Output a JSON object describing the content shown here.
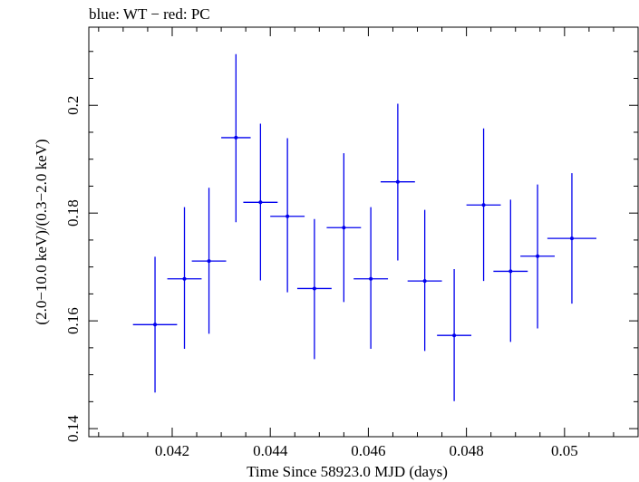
{
  "chart_data": {
    "type": "scatter",
    "title": "blue: WT − red: PC",
    "xlabel": "Time Since 58923.0 MJD (days)",
    "ylabel": "(2.0−10.0 keV)/(0.3−2.0 keV)",
    "xlim": [
      0.0403,
      0.0515
    ],
    "ylim": [
      0.1385,
      0.2145
    ],
    "x_ticks": [
      0.042,
      0.044,
      0.046,
      0.048,
      0.05
    ],
    "x_tick_labels": [
      "0.042",
      "0.044",
      "0.046",
      "0.048",
      "0.05"
    ],
    "y_ticks": [
      0.14,
      0.16,
      0.18,
      0.2
    ],
    "y_tick_labels": [
      "0.14",
      "0.16",
      "0.18",
      "0.2"
    ],
    "grid": false,
    "series": [
      {
        "color": "#0000ee",
        "points": [
          {
            "x": 0.04165,
            "y": 0.1593,
            "xerr": 0.00045,
            "ylo": 0.1467,
            "yhi": 0.1719
          },
          {
            "x": 0.04225,
            "y": 0.1678,
            "xerr": 0.00035,
            "ylo": 0.1548,
            "yhi": 0.1811
          },
          {
            "x": 0.04275,
            "y": 0.1711,
            "xerr": 0.00035,
            "ylo": 0.1576,
            "yhi": 0.1847
          },
          {
            "x": 0.0433,
            "y": 0.194,
            "xerr": 0.0003,
            "ylo": 0.1783,
            "yhi": 0.2095
          },
          {
            "x": 0.0438,
            "y": 0.182,
            "xerr": 0.00035,
            "ylo": 0.1675,
            "yhi": 0.1966
          },
          {
            "x": 0.04435,
            "y": 0.1794,
            "xerr": 0.00035,
            "ylo": 0.1653,
            "yhi": 0.1939
          },
          {
            "x": 0.0449,
            "y": 0.166,
            "xerr": 0.00035,
            "ylo": 0.1529,
            "yhi": 0.1789
          },
          {
            "x": 0.0455,
            "y": 0.1773,
            "xerr": 0.00035,
            "ylo": 0.1635,
            "yhi": 0.1911
          },
          {
            "x": 0.04605,
            "y": 0.1678,
            "xerr": 0.00035,
            "ylo": 0.1548,
            "yhi": 0.1811
          },
          {
            "x": 0.0466,
            "y": 0.1858,
            "xerr": 0.00035,
            "ylo": 0.1712,
            "yhi": 0.2003
          },
          {
            "x": 0.04715,
            "y": 0.1674,
            "xerr": 0.00035,
            "ylo": 0.1544,
            "yhi": 0.1806
          },
          {
            "x": 0.04775,
            "y": 0.1573,
            "xerr": 0.00035,
            "ylo": 0.1451,
            "yhi": 0.1696
          },
          {
            "x": 0.04835,
            "y": 0.1815,
            "xerr": 0.00035,
            "ylo": 0.1674,
            "yhi": 0.1957
          },
          {
            "x": 0.0489,
            "y": 0.1692,
            "xerr": 0.00035,
            "ylo": 0.1561,
            "yhi": 0.1825
          },
          {
            "x": 0.04945,
            "y": 0.172,
            "xerr": 0.00035,
            "ylo": 0.1586,
            "yhi": 0.1853
          },
          {
            "x": 0.05015,
            "y": 0.1753,
            "xerr": 0.0005,
            "ylo": 0.1632,
            "yhi": 0.1874
          }
        ]
      }
    ]
  }
}
